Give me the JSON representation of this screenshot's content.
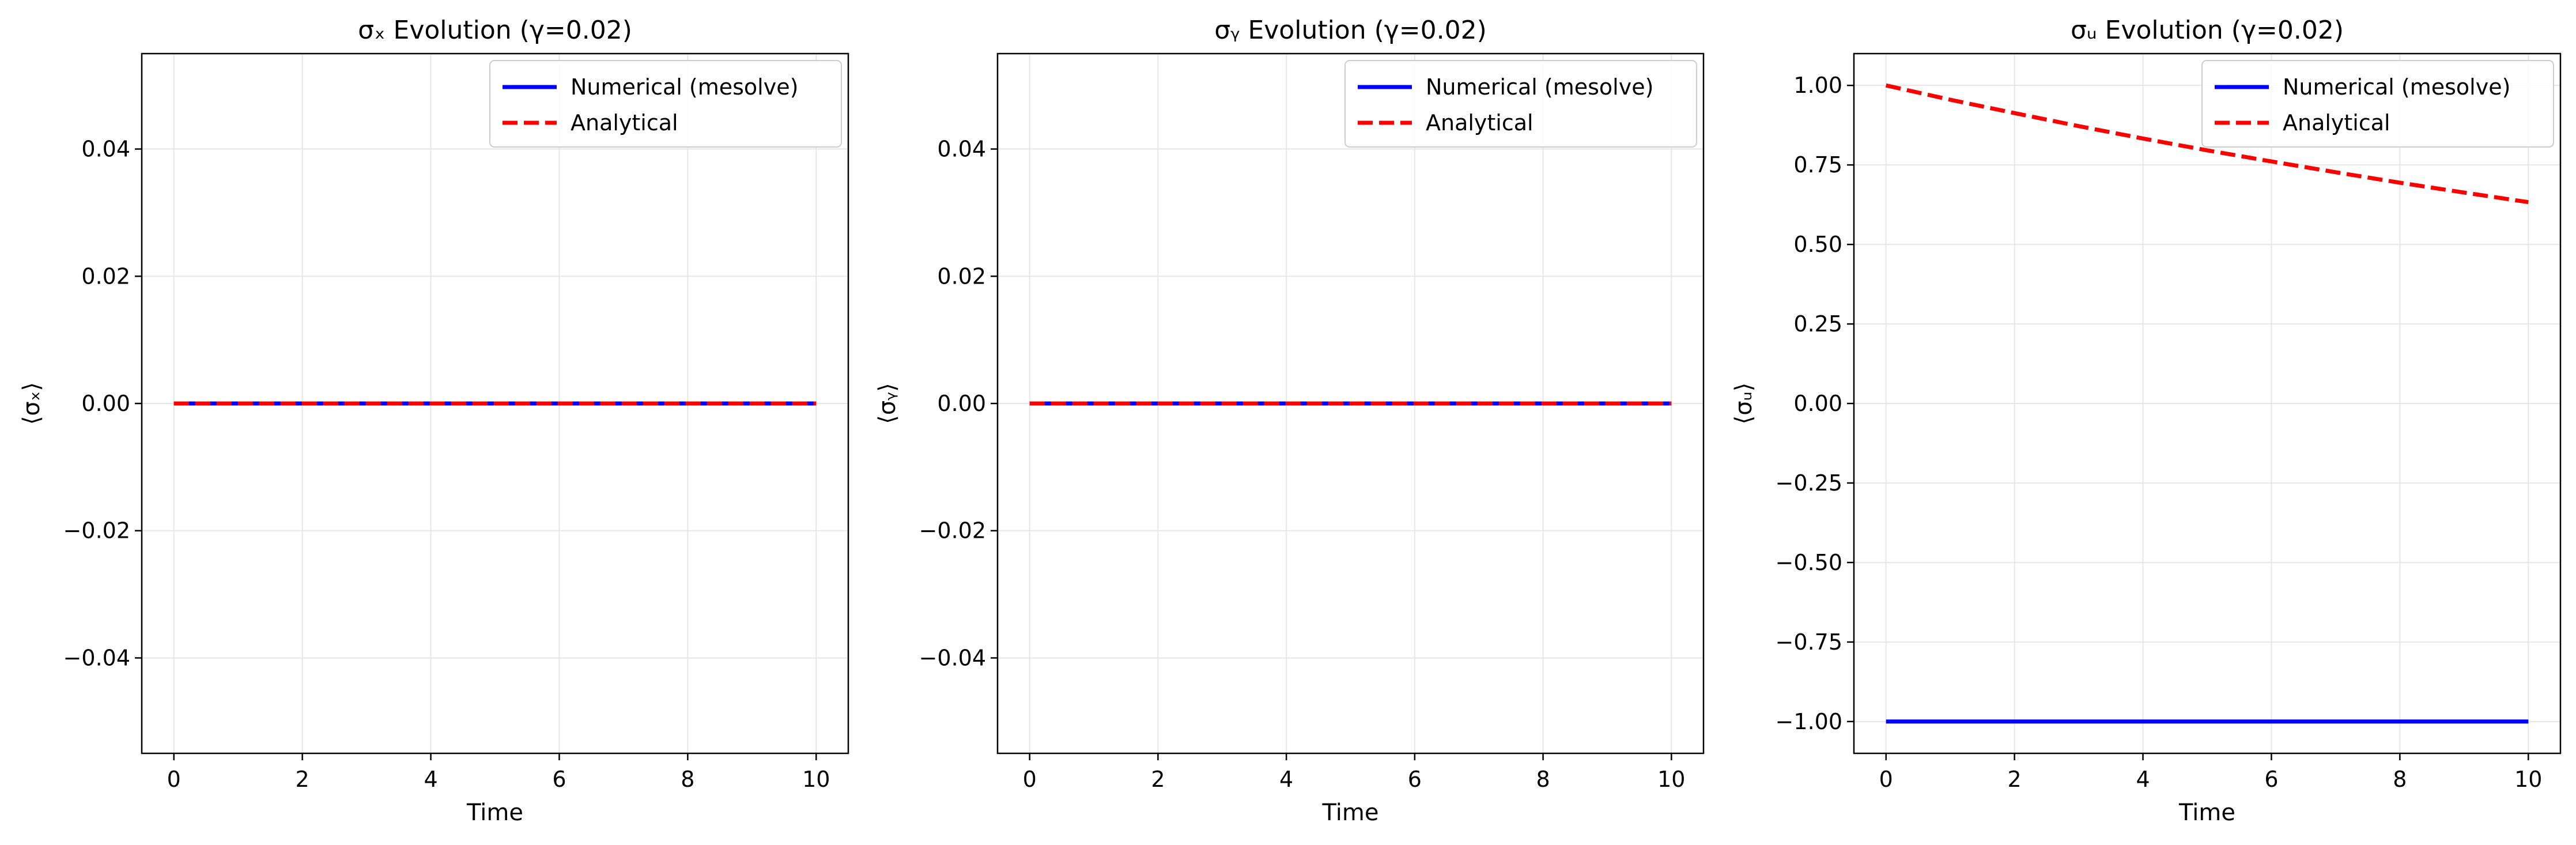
{
  "figure": {
    "background": "#ffffff",
    "grid_color": "#e6e6e6",
    "colors": {
      "numerical": "#0000ff",
      "analytical": "#ff0000"
    }
  },
  "chart_data": [
    {
      "type": "line",
      "title": "σₓ Evolution (γ=0.02)",
      "xlabel": "Time",
      "ylabel": "⟨σₓ⟩",
      "xlim": [
        -0.5,
        10.5
      ],
      "ylim": [
        -0.055,
        0.055
      ],
      "xticks": [
        0,
        2,
        4,
        6,
        8,
        10
      ],
      "xtick_labels": [
        "0",
        "2",
        "4",
        "6",
        "8",
        "10"
      ],
      "yticks": [
        -0.04,
        -0.02,
        0.0,
        0.02,
        0.04
      ],
      "ytick_labels": [
        "−0.04",
        "−0.02",
        "0.00",
        "0.02",
        "0.04"
      ],
      "grid": true,
      "legend": "top-right",
      "series": [
        {
          "name": "Numerical (mesolve)",
          "style": "solid",
          "color": "#0000ff",
          "x": [
            0,
            2,
            4,
            6,
            8,
            10
          ],
          "values": [
            0,
            0,
            0,
            0,
            0,
            0
          ]
        },
        {
          "name": "Analytical",
          "style": "dashed",
          "color": "#ff0000",
          "x": [
            0,
            2,
            4,
            6,
            8,
            10
          ],
          "values": [
            0,
            0,
            0,
            0,
            0,
            0
          ]
        }
      ]
    },
    {
      "type": "line",
      "title": "σᵧ Evolution (γ=0.02)",
      "xlabel": "Time",
      "ylabel": "⟨σᵧ⟩",
      "xlim": [
        -0.5,
        10.5
      ],
      "ylim": [
        -0.055,
        0.055
      ],
      "xticks": [
        0,
        2,
        4,
        6,
        8,
        10
      ],
      "xtick_labels": [
        "0",
        "2",
        "4",
        "6",
        "8",
        "10"
      ],
      "yticks": [
        -0.04,
        -0.02,
        0.0,
        0.02,
        0.04
      ],
      "ytick_labels": [
        "−0.04",
        "−0.02",
        "0.00",
        "0.02",
        "0.04"
      ],
      "grid": true,
      "legend": "top-right",
      "series": [
        {
          "name": "Numerical (mesolve)",
          "style": "solid",
          "color": "#0000ff",
          "x": [
            0,
            2,
            4,
            6,
            8,
            10
          ],
          "values": [
            0,
            0,
            0,
            0,
            0,
            0
          ]
        },
        {
          "name": "Analytical",
          "style": "dashed",
          "color": "#ff0000",
          "x": [
            0,
            2,
            4,
            6,
            8,
            10
          ],
          "values": [
            0,
            0,
            0,
            0,
            0,
            0
          ]
        }
      ]
    },
    {
      "type": "line",
      "title": "σᵤ Evolution (γ=0.02)",
      "xlabel": "Time",
      "ylabel": "⟨σᵤ⟩",
      "xlim": [
        -0.5,
        10.5
      ],
      "ylim": [
        -1.1,
        1.1
      ],
      "xticks": [
        0,
        2,
        4,
        6,
        8,
        10
      ],
      "xtick_labels": [
        "0",
        "2",
        "4",
        "6",
        "8",
        "10"
      ],
      "yticks": [
        -1.0,
        -0.75,
        -0.5,
        -0.25,
        0.0,
        0.25,
        0.5,
        0.75,
        1.0
      ],
      "ytick_labels": [
        "−1.00",
        "−0.75",
        "−0.50",
        "−0.25",
        "0.00",
        "0.25",
        "0.50",
        "0.75",
        "1.00"
      ],
      "grid": true,
      "legend": "top-right",
      "series": [
        {
          "name": "Numerical (mesolve)",
          "style": "solid",
          "color": "#0000ff",
          "x": [
            0,
            2,
            4,
            6,
            8,
            10
          ],
          "values": [
            -1,
            -1,
            -1,
            -1,
            -1,
            -1
          ]
        },
        {
          "name": "Analytical",
          "style": "dashed",
          "color": "#ff0000",
          "x": [
            0,
            1,
            2,
            3,
            4,
            5,
            6,
            7,
            8,
            9,
            10
          ],
          "values": [
            1.0,
            0.955,
            0.913,
            0.872,
            0.833,
            0.796,
            0.761,
            0.727,
            0.694,
            0.663,
            0.633
          ]
        }
      ]
    }
  ]
}
